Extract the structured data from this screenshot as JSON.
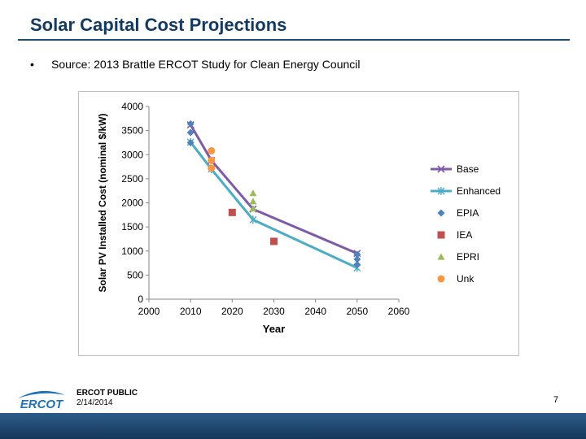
{
  "slide": {
    "title": "Solar Capital Cost Projections",
    "bullet": "Source: 2013 Brattle ERCOT Study for Clean Energy Council",
    "footer_label": "ERCOT PUBLIC",
    "footer_date": "2/14/2014",
    "page_number": "7",
    "logo_text": "ERCOT",
    "bullet_symbol": "•"
  },
  "colors": {
    "title": "#123a62",
    "base": "#7d5ba6",
    "enhanced": "#4bacc6",
    "epia": "#4f81bd",
    "iea": "#c0504d",
    "epri": "#9bbb59",
    "unk": "#f79646"
  },
  "chart_data": {
    "type": "line",
    "xlabel": "Year",
    "ylabel": "Solar PV Installed Cost (nominal $/kW)",
    "xlim": [
      2000,
      2060
    ],
    "ylim": [
      0,
      4000
    ],
    "xticks": [
      "2000",
      "2010",
      "2020",
      "2030",
      "2040",
      "2050",
      "2060"
    ],
    "yticks": [
      "0",
      "500",
      "1000",
      "1500",
      "2000",
      "2500",
      "3000",
      "3500",
      "4000"
    ],
    "grid": false,
    "legend_position": "right",
    "series": [
      {
        "name": "Base",
        "kind": "line",
        "marker": "x",
        "color": "#7d5ba6",
        "points": [
          [
            2010,
            3620
          ],
          [
            2015,
            2880
          ],
          [
            2025,
            1870
          ],
          [
            2050,
            950
          ]
        ]
      },
      {
        "name": "Enhanced",
        "kind": "line",
        "marker": "star",
        "color": "#4bacc6",
        "points": [
          [
            2010,
            3260
          ],
          [
            2015,
            2700
          ],
          [
            2025,
            1650
          ],
          [
            2050,
            650
          ]
        ]
      },
      {
        "name": "EPIA",
        "kind": "scatter",
        "marker": "diamond",
        "color": "#4f81bd",
        "points": [
          [
            2010,
            3640
          ],
          [
            2010,
            3460
          ],
          [
            2010,
            3250
          ],
          [
            2050,
            930
          ],
          [
            2050,
            830
          ],
          [
            2050,
            720
          ]
        ]
      },
      {
        "name": "IEA",
        "kind": "scatter",
        "marker": "square",
        "color": "#c0504d",
        "points": [
          [
            2020,
            1800
          ],
          [
            2030,
            1200
          ]
        ]
      },
      {
        "name": "EPRI",
        "kind": "scatter",
        "marker": "triangle",
        "color": "#9bbb59",
        "points": [
          [
            2025,
            2200
          ],
          [
            2025,
            2030
          ],
          [
            2025,
            1880
          ]
        ]
      },
      {
        "name": "Unk",
        "kind": "scatter",
        "marker": "circle",
        "color": "#f79646",
        "points": [
          [
            2015,
            3080
          ],
          [
            2015,
            2880
          ],
          [
            2015,
            2720
          ]
        ]
      }
    ]
  }
}
